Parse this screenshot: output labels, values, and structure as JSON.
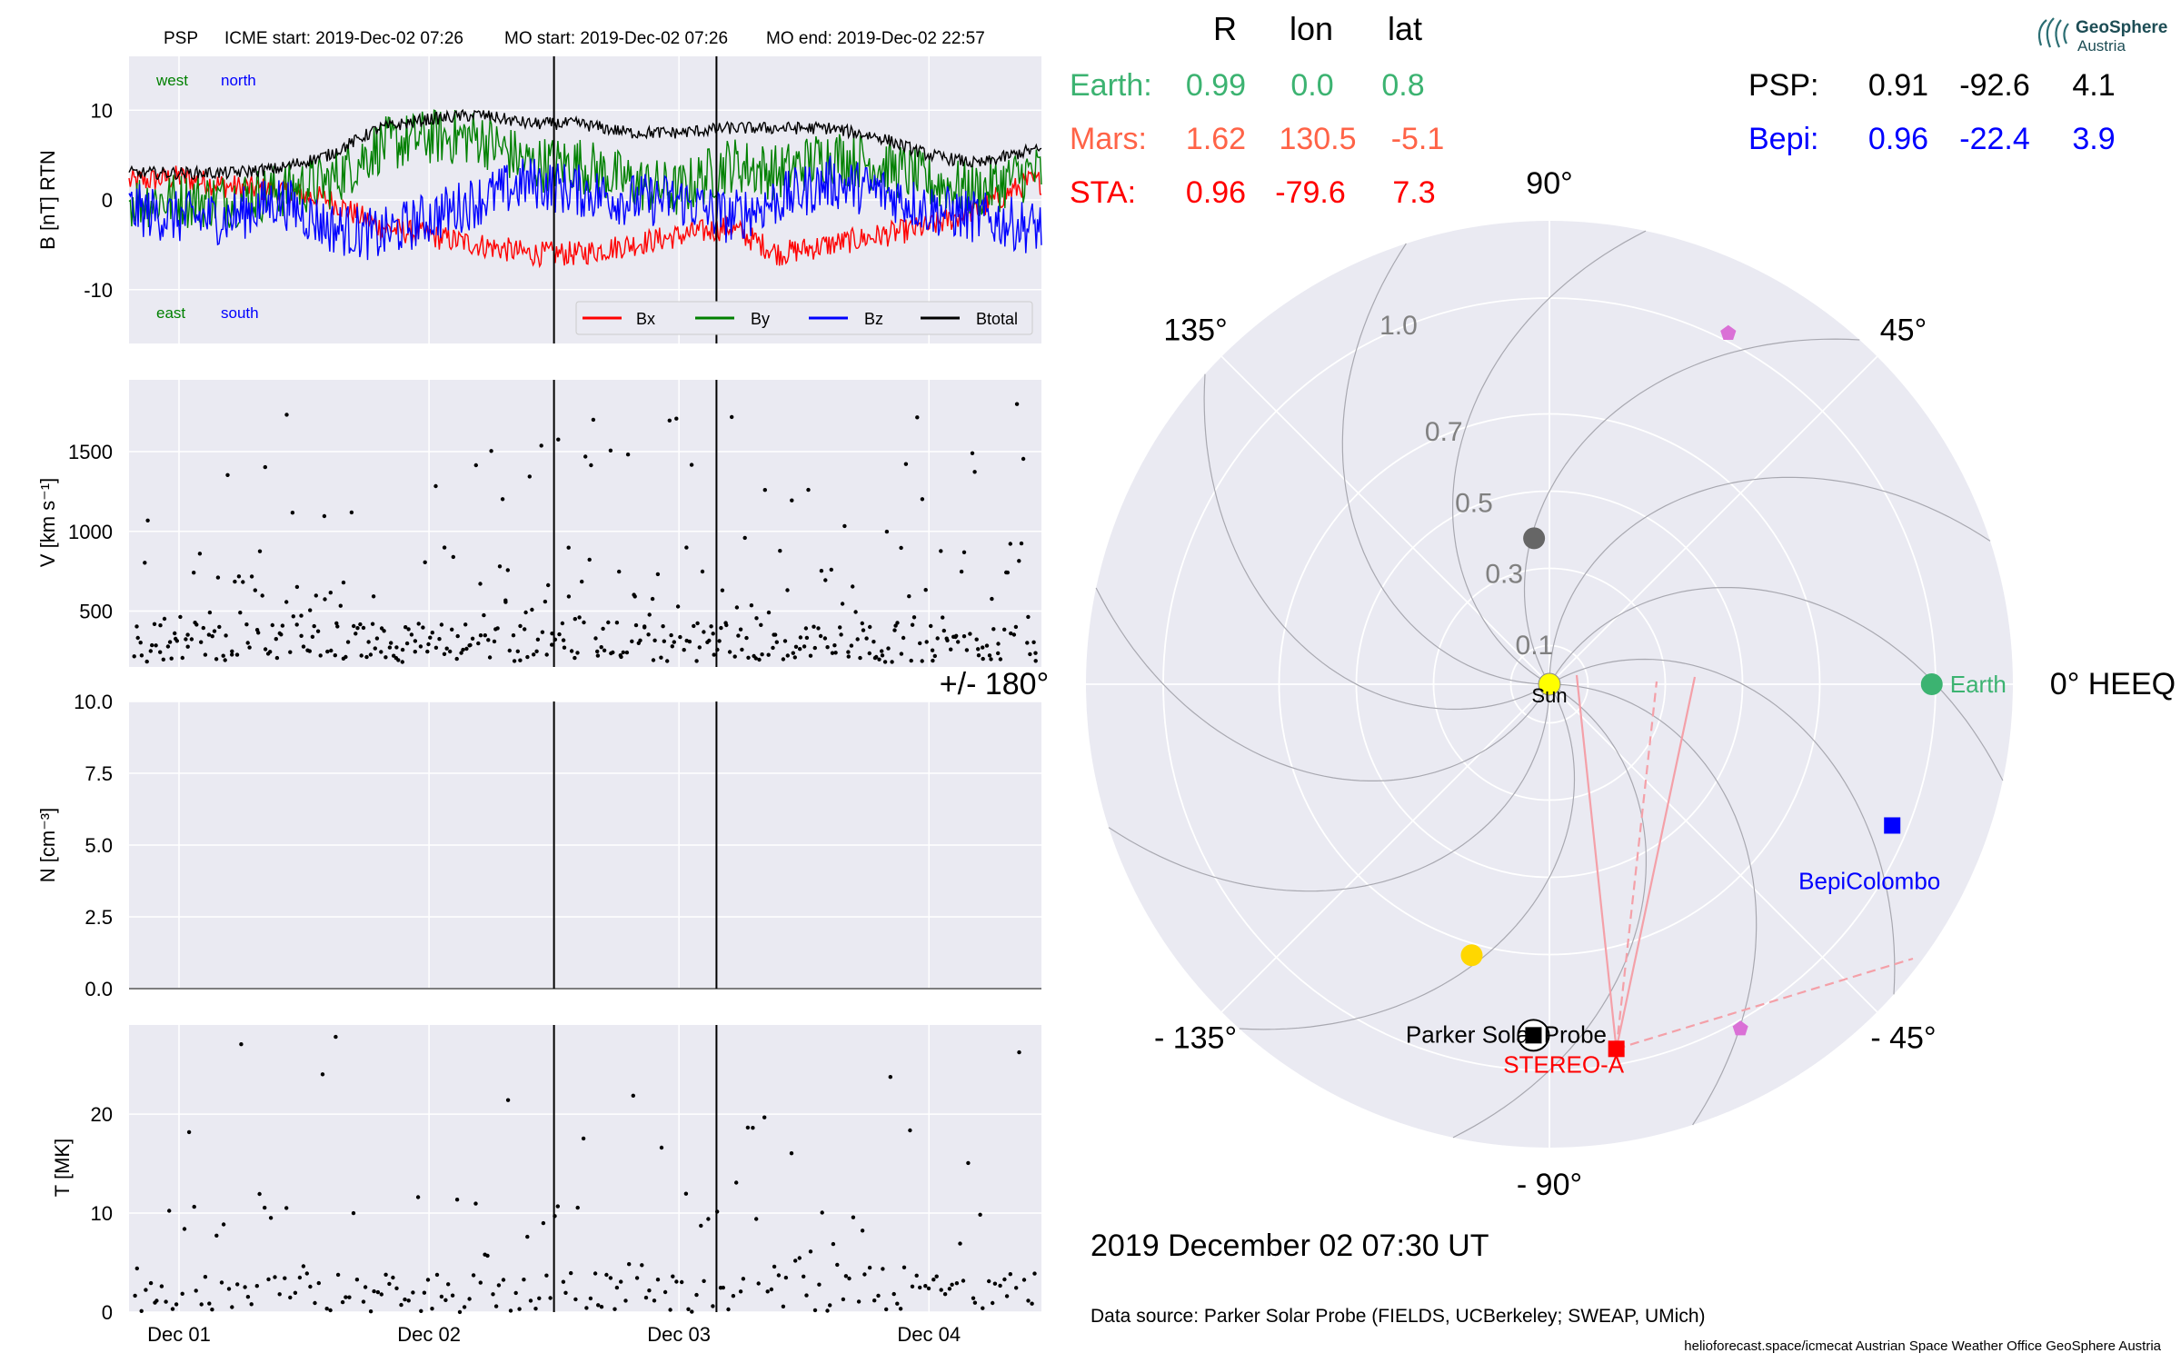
{
  "header": {
    "spacecraft": "PSP",
    "icme_start": "ICME start: 2019-Dec-02 07:26",
    "mo_start": "MO start: 2019-Dec-02 07:26",
    "mo_end": "MO end: 2019-Dec-02 22:57"
  },
  "logo": {
    "line1": "GeoSphere",
    "line2": "Austria"
  },
  "position_table": {
    "columns": [
      "R",
      "lon",
      "lat"
    ],
    "rows": [
      {
        "name": "Earth:",
        "R": "0.99",
        "lon": "0.0",
        "lat": "0.8",
        "color": "#3cb371"
      },
      {
        "name": "Mars:",
        "R": "1.62",
        "lon": "130.5",
        "lat": "-5.1",
        "color": "#ff6347"
      },
      {
        "name": "STA:",
        "R": "0.96",
        "lon": "-79.6",
        "lat": "7.3",
        "color": "#ff0000"
      }
    ],
    "rows_right": [
      {
        "name": "PSP:",
        "R": "0.91",
        "lon": "-92.6",
        "lat": "4.1",
        "color": "#000000"
      },
      {
        "name": "Bepi:",
        "R": "0.96",
        "lon": "-22.4",
        "lat": "3.9",
        "color": "#0000ff"
      }
    ]
  },
  "chart_data": [
    {
      "type": "line",
      "id": "mag",
      "ylabel": "B [nT] RTN",
      "ylim": [
        -16,
        16
      ],
      "yticks": [
        -10,
        0,
        10
      ],
      "grid": true,
      "legend_placement": "bottom-right",
      "annotations": [
        {
          "text": "west",
          "color": "#008000",
          "pos": "top-left"
        },
        {
          "text": "north",
          "color": "#0000ff",
          "pos": "top-left"
        },
        {
          "text": "east",
          "color": "#008000",
          "pos": "bottom-left"
        },
        {
          "text": "south",
          "color": "#0000ff",
          "pos": "bottom-left"
        }
      ],
      "x_days": [
        0.0,
        0.2,
        0.4,
        0.6,
        0.8,
        1.0,
        1.2,
        1.4,
        1.6,
        1.8,
        2.0,
        2.2,
        2.4,
        2.6,
        2.8,
        3.0,
        3.2,
        3.4,
        3.6
      ],
      "series": [
        {
          "name": "Bx",
          "color": "#ff0000",
          "values": [
            2,
            2.5,
            1.5,
            1,
            0,
            -3,
            -4,
            -5,
            -6,
            -6,
            -5,
            -4,
            -3,
            -6,
            -5,
            -4,
            -3,
            -1,
            2
          ]
        },
        {
          "name": "By",
          "color": "#008000",
          "values": [
            0,
            0,
            0,
            1,
            2,
            6,
            7,
            7,
            4,
            4,
            2,
            1,
            4,
            3,
            5,
            4,
            2,
            1,
            3
          ]
        },
        {
          "name": "Bz",
          "color": "#0000ff",
          "values": [
            -1,
            -2,
            -2,
            0,
            -3,
            -4,
            -2,
            0,
            2,
            1,
            0,
            0,
            -2,
            0,
            2,
            1,
            -1,
            -2,
            -3
          ]
        },
        {
          "name": "Btotal",
          "color": "#000000",
          "values": [
            3,
            3,
            3,
            3.5,
            5,
            8,
            9,
            9.5,
            8.5,
            8.5,
            7.5,
            7.5,
            8,
            8,
            8,
            7,
            5,
            4,
            5.5
          ]
        }
      ]
    },
    {
      "type": "scatter",
      "id": "speed",
      "ylabel": "V [km s⁻¹]",
      "ylim": [
        150,
        1950
      ],
      "yticks": [
        500,
        1000,
        1500
      ],
      "grid": true,
      "approx_range": [
        180,
        1880
      ]
    },
    {
      "type": "scatter",
      "id": "density",
      "ylabel": "N [cm⁻³]",
      "ylim": [
        0,
        10
      ],
      "yticks": [
        0.0,
        2.5,
        5.0,
        7.5,
        10.0
      ],
      "ytick_labels": [
        "0.0",
        "2.5",
        "5.0",
        "7.5",
        "10.0"
      ],
      "grid": true,
      "values": []
    },
    {
      "type": "scatter",
      "id": "temperature",
      "ylabel": "T [MK]",
      "ylim": [
        0,
        29
      ],
      "yticks": [
        0,
        10,
        20
      ],
      "grid": true,
      "approx_range": [
        0,
        28
      ]
    },
    {
      "type": "scatter",
      "id": "polar-map",
      "projection": "polar",
      "frame_label": "0° HEEQ",
      "theta_labels": [
        "0° HEEQ",
        "45°",
        "90°",
        "135°",
        "+/- 180°",
        "- 135°",
        "- 90°",
        "- 45°"
      ],
      "theta_label_angles": [
        0,
        45,
        90,
        135,
        180,
        -135,
        -90,
        -45
      ],
      "r_ticks": [
        0.1,
        0.3,
        0.5,
        0.7,
        1.0
      ],
      "r_tick_labels": [
        "0.1",
        "0.3",
        "0.5",
        "0.7",
        "1.0"
      ],
      "rmax": 1.2,
      "grid": true,
      "objects": [
        {
          "label": "Sun",
          "r": 0,
          "lon": 0,
          "color": "#ffff00",
          "marker": "circle"
        },
        {
          "label": "Earth",
          "r": 0.99,
          "lon": 0.0,
          "color": "#3cb371",
          "marker": "circle"
        },
        {
          "label": "BepiColombo",
          "r": 0.96,
          "lon": -22.4,
          "color": "#0000ff",
          "marker": "square"
        },
        {
          "label": "STEREO-A",
          "r": 0.96,
          "lon": -79.6,
          "color": "#ff0000",
          "marker": "square"
        },
        {
          "label": "Parker Solar Probe",
          "r": 0.91,
          "lon": -92.6,
          "color": "#000000",
          "marker": "square"
        }
      ],
      "unlabeled_objects": [
        {
          "r": 0.38,
          "lon": 96,
          "color": "#666666",
          "marker": "circle"
        },
        {
          "r": 0.73,
          "lon": -106,
          "color": "#ffd700",
          "marker": "circle"
        },
        {
          "r": 1.02,
          "lon": 63,
          "color": "#da70d6",
          "marker": "pentagon"
        },
        {
          "r": 1.02,
          "lon": -61,
          "color": "#da70d6",
          "marker": "pentagon"
        }
      ]
    }
  ],
  "time_axis": {
    "tick_labels": [
      "Dec 01",
      "Dec 02",
      "Dec 03",
      "Dec 04"
    ],
    "tick_days": [
      0.2,
      1.2,
      2.2,
      3.2
    ],
    "xlim_days": [
      0.0,
      3.65
    ],
    "marker_lines_days": [
      1.7,
      2.35
    ]
  },
  "legend": {
    "entries": [
      "Bx",
      "By",
      "Bz",
      "Btotal"
    ]
  },
  "footer": {
    "timestamp": "2019 December 02  07:30 UT",
    "data_source": "Data source: Parker Solar Probe (FIELDS, UCBerkeley; SWEAP, UMich)",
    "credits": "helioforecast.space/icmecat   Austrian Space Weather Office   GeoSphere Austria"
  },
  "colors": {
    "panel_bg": "#eaeaf2",
    "grid": "#ffffff",
    "earth": "#3cb371",
    "mars": "#ff6347",
    "sta": "#ff0000",
    "bepi": "#0000ff",
    "psp": "#000000"
  }
}
